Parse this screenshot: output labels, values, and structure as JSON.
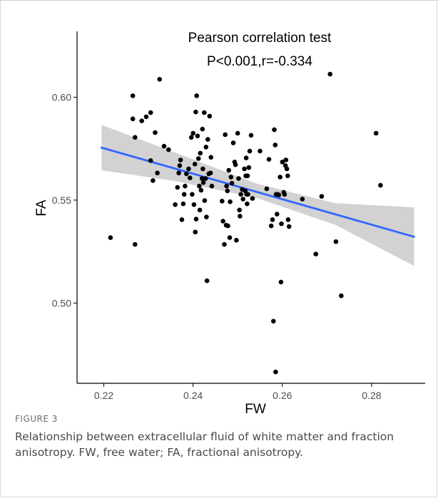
{
  "figure": {
    "label": "FIGURE 3",
    "caption": "Relationship between extracellular fluid of white matter and fraction anisotropy. FW, free water; FA, fractional anisotropy."
  },
  "chart_data": {
    "type": "scatter",
    "title": "Pearson correlation test",
    "subtitle": "P<0.001,r=-0.334",
    "xlabel": "FW",
    "ylabel": "FA",
    "xlim": [
      0.214,
      0.292
    ],
    "ylim": [
      0.461,
      0.632
    ],
    "xticks": [
      0.22,
      0.24,
      0.26,
      0.28
    ],
    "xtick_labels": [
      "0.22",
      "0.24",
      "0.26",
      "0.28"
    ],
    "yticks": [
      0.5,
      0.55,
      0.6
    ],
    "ytick_labels": [
      "0.50",
      "0.55",
      "0.60"
    ],
    "grid": false,
    "point_color": "#000000",
    "line_color": "#3366ff",
    "band_color": "#bfbfbf",
    "regression": {
      "x_start": 0.2195,
      "y_start": 0.5755,
      "x_end": 0.2895,
      "y_end": 0.5322
    },
    "confidence_band": {
      "x": [
        0.2195,
        0.2367,
        0.2543,
        0.2719,
        0.2895
      ],
      "lower": [
        0.5645,
        0.559,
        0.551,
        0.538,
        0.518
      ],
      "upper": [
        0.5865,
        0.5725,
        0.558,
        0.5485,
        0.5465
      ]
    },
    "points": [
      {
        "x": 0.2215,
        "y": 0.5318
      },
      {
        "x": 0.2265,
        "y": 0.6007
      },
      {
        "x": 0.2265,
        "y": 0.5895
      },
      {
        "x": 0.227,
        "y": 0.5805
      },
      {
        "x": 0.227,
        "y": 0.5285
      },
      {
        "x": 0.2285,
        "y": 0.5885
      },
      {
        "x": 0.2295,
        "y": 0.5905
      },
      {
        "x": 0.2305,
        "y": 0.5925
      },
      {
        "x": 0.2305,
        "y": 0.5692
      },
      {
        "x": 0.231,
        "y": 0.5595
      },
      {
        "x": 0.2315,
        "y": 0.5828
      },
      {
        "x": 0.232,
        "y": 0.5632
      },
      {
        "x": 0.2325,
        "y": 0.6087
      },
      {
        "x": 0.2335,
        "y": 0.5762
      },
      {
        "x": 0.2345,
        "y": 0.5745
      },
      {
        "x": 0.236,
        "y": 0.5478
      },
      {
        "x": 0.2365,
        "y": 0.5562
      },
      {
        "x": 0.2368,
        "y": 0.5632
      },
      {
        "x": 0.237,
        "y": 0.5668
      },
      {
        "x": 0.2372,
        "y": 0.5695
      },
      {
        "x": 0.2375,
        "y": 0.5405
      },
      {
        "x": 0.2378,
        "y": 0.5482
      },
      {
        "x": 0.238,
        "y": 0.5528
      },
      {
        "x": 0.2382,
        "y": 0.5568
      },
      {
        "x": 0.2385,
        "y": 0.5628
      },
      {
        "x": 0.239,
        "y": 0.5652
      },
      {
        "x": 0.2393,
        "y": 0.5608
      },
      {
        "x": 0.2396,
        "y": 0.5805
      },
      {
        "x": 0.2398,
        "y": 0.5528
      },
      {
        "x": 0.24,
        "y": 0.5825
      },
      {
        "x": 0.2402,
        "y": 0.5478
      },
      {
        "x": 0.2404,
        "y": 0.5675
      },
      {
        "x": 0.2405,
        "y": 0.5345
      },
      {
        "x": 0.2406,
        "y": 0.5928
      },
      {
        "x": 0.2407,
        "y": 0.5408
      },
      {
        "x": 0.2408,
        "y": 0.6007
      },
      {
        "x": 0.241,
        "y": 0.5812
      },
      {
        "x": 0.2412,
        "y": 0.5702
      },
      {
        "x": 0.2414,
        "y": 0.5568
      },
      {
        "x": 0.2415,
        "y": 0.5452
      },
      {
        "x": 0.2416,
        "y": 0.5728
      },
      {
        "x": 0.2418,
        "y": 0.5548
      },
      {
        "x": 0.242,
        "y": 0.5605
      },
      {
        "x": 0.2421,
        "y": 0.5845
      },
      {
        "x": 0.2422,
        "y": 0.5652
      },
      {
        "x": 0.2423,
        "y": 0.5585
      },
      {
        "x": 0.2425,
        "y": 0.5925
      },
      {
        "x": 0.2426,
        "y": 0.5498
      },
      {
        "x": 0.2428,
        "y": 0.5605
      },
      {
        "x": 0.2429,
        "y": 0.5758
      },
      {
        "x": 0.243,
        "y": 0.5418
      },
      {
        "x": 0.2431,
        "y": 0.5108
      },
      {
        "x": 0.2433,
        "y": 0.5795
      },
      {
        "x": 0.2435,
        "y": 0.5628
      },
      {
        "x": 0.2437,
        "y": 0.5908
      },
      {
        "x": 0.2439,
        "y": 0.5632
      },
      {
        "x": 0.244,
        "y": 0.5708
      },
      {
        "x": 0.2442,
        "y": 0.5568
      },
      {
        "x": 0.2465,
        "y": 0.5495
      },
      {
        "x": 0.2467,
        "y": 0.5398
      },
      {
        "x": 0.247,
        "y": 0.5285
      },
      {
        "x": 0.2472,
        "y": 0.5818
      },
      {
        "x": 0.2474,
        "y": 0.5378
      },
      {
        "x": 0.2475,
        "y": 0.5568
      },
      {
        "x": 0.2477,
        "y": 0.5545
      },
      {
        "x": 0.2478,
        "y": 0.5375
      },
      {
        "x": 0.248,
        "y": 0.5645
      },
      {
        "x": 0.2482,
        "y": 0.5318
      },
      {
        "x": 0.2483,
        "y": 0.5492
      },
      {
        "x": 0.2485,
        "y": 0.5612
      },
      {
        "x": 0.2487,
        "y": 0.5582
      },
      {
        "x": 0.249,
        "y": 0.5778
      },
      {
        "x": 0.2493,
        "y": 0.5685
      },
      {
        "x": 0.2495,
        "y": 0.5672
      },
      {
        "x": 0.2497,
        "y": 0.5305
      },
      {
        "x": 0.25,
        "y": 0.5825
      },
      {
        "x": 0.2502,
        "y": 0.5605
      },
      {
        "x": 0.2504,
        "y": 0.5452
      },
      {
        "x": 0.2505,
        "y": 0.5422
      },
      {
        "x": 0.2507,
        "y": 0.5528
      },
      {
        "x": 0.251,
        "y": 0.5552
      },
      {
        "x": 0.2512,
        "y": 0.5505
      },
      {
        "x": 0.2515,
        "y": 0.5652
      },
      {
        "x": 0.2517,
        "y": 0.5545
      },
      {
        "x": 0.2518,
        "y": 0.5618
      },
      {
        "x": 0.2519,
        "y": 0.5705
      },
      {
        "x": 0.252,
        "y": 0.5528
      },
      {
        "x": 0.2521,
        "y": 0.5482
      },
      {
        "x": 0.2522,
        "y": 0.5618
      },
      {
        "x": 0.2523,
        "y": 0.5528
      },
      {
        "x": 0.2525,
        "y": 0.5658
      },
      {
        "x": 0.2527,
        "y": 0.5738
      },
      {
        "x": 0.253,
        "y": 0.5815
      },
      {
        "x": 0.2533,
        "y": 0.5508
      },
      {
        "x": 0.255,
        "y": 0.5738
      },
      {
        "x": 0.2565,
        "y": 0.5555
      },
      {
        "x": 0.257,
        "y": 0.5698
      },
      {
        "x": 0.2575,
        "y": 0.5375
      },
      {
        "x": 0.2578,
        "y": 0.5405
      },
      {
        "x": 0.258,
        "y": 0.4912
      },
      {
        "x": 0.2582,
        "y": 0.5842
      },
      {
        "x": 0.2584,
        "y": 0.5768
      },
      {
        "x": 0.2585,
        "y": 0.4665
      },
      {
        "x": 0.2586,
        "y": 0.5528
      },
      {
        "x": 0.2588,
        "y": 0.5432
      },
      {
        "x": 0.259,
        "y": 0.5528
      },
      {
        "x": 0.2592,
        "y": 0.5525
      },
      {
        "x": 0.2595,
        "y": 0.5612
      },
      {
        "x": 0.2597,
        "y": 0.5102
      },
      {
        "x": 0.2598,
        "y": 0.5385
      },
      {
        "x": 0.26,
        "y": 0.5685
      },
      {
        "x": 0.2603,
        "y": 0.5538
      },
      {
        "x": 0.2605,
        "y": 0.5528
      },
      {
        "x": 0.2607,
        "y": 0.5668
      },
      {
        "x": 0.2608,
        "y": 0.5695
      },
      {
        "x": 0.261,
        "y": 0.5652
      },
      {
        "x": 0.2612,
        "y": 0.5618
      },
      {
        "x": 0.2613,
        "y": 0.5405
      },
      {
        "x": 0.2615,
        "y": 0.5372
      },
      {
        "x": 0.2645,
        "y": 0.5505
      },
      {
        "x": 0.2675,
        "y": 0.5238
      },
      {
        "x": 0.2688,
        "y": 0.5518
      },
      {
        "x": 0.2707,
        "y": 0.6112
      },
      {
        "x": 0.272,
        "y": 0.5298
      },
      {
        "x": 0.2732,
        "y": 0.5035
      },
      {
        "x": 0.281,
        "y": 0.5825
      },
      {
        "x": 0.282,
        "y": 0.5572
      }
    ]
  }
}
